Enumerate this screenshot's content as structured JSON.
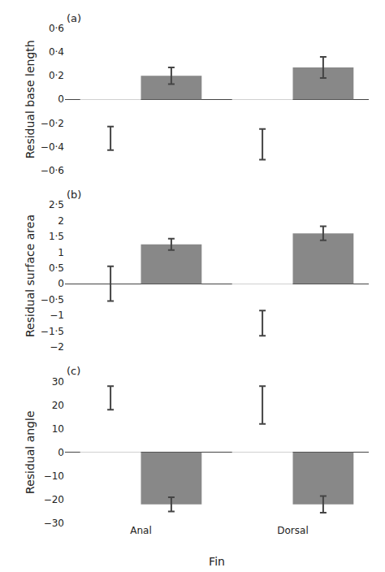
{
  "chart_data": [
    {
      "type": "bar",
      "title": "(a)",
      "ylabel": "Residual base length",
      "categories": [
        "Anal",
        "Dorsal"
      ],
      "series": [
        {
          "color": "#ffffff",
          "values": [
            -0.33,
            -0.38
          ],
          "errors": [
            0.1,
            0.13
          ]
        },
        {
          "color": "#888888",
          "values": [
            0.2,
            0.27
          ],
          "errors": [
            0.07,
            0.09
          ]
        }
      ],
      "ylim": [
        -0.6,
        0.6
      ],
      "yticks": [
        {
          "value": -0.6,
          "label": "−0·6"
        },
        {
          "value": -0.4,
          "label": "−0·4"
        },
        {
          "value": -0.2,
          "label": "−0·2"
        },
        0,
        {
          "value": 0.2,
          "label": "0·2"
        },
        {
          "value": 0.4,
          "label": "0·4"
        },
        {
          "value": 0.6,
          "label": "0·6"
        }
      ],
      "grid": false,
      "tick_labels": "y"
    },
    {
      "type": "bar",
      "title": "(b)",
      "ylabel": "Residual surface area",
      "categories": [
        "Anal",
        "Dorsal"
      ],
      "series": [
        {
          "color": "#ffffff",
          "values": [
            0.0,
            -1.25
          ],
          "errors": [
            0.55,
            0.4
          ]
        },
        {
          "color": "#888888",
          "values": [
            1.25,
            1.6
          ],
          "errors": [
            0.18,
            0.22
          ]
        }
      ],
      "ylim": [
        -2.0,
        2.5
      ],
      "yticks": [
        {
          "value": -2.0,
          "label": "−2"
        },
        {
          "value": -1.5,
          "label": "−1·5"
        },
        {
          "value": -1.0,
          "label": "−1"
        },
        {
          "value": -0.5,
          "label": "−0·5"
        },
        0,
        {
          "value": 0.5,
          "label": "0·5"
        },
        1,
        {
          "value": 1.5,
          "label": "1·5"
        },
        2,
        {
          "value": 2.5,
          "label": "2·5"
        }
      ],
      "grid": false,
      "tick_labels": "y"
    },
    {
      "type": "bar",
      "title": "(c)",
      "ylabel": "Residual angle",
      "xlabel": "Fin",
      "categories": [
        "Anal",
        "Dorsal"
      ],
      "series": [
        {
          "color": "#ffffff",
          "values": [
            23.0,
            20.0
          ],
          "errors": [
            5.0,
            8.0
          ]
        },
        {
          "color": "#888888",
          "values": [
            -22.0,
            -22.0
          ],
          "errors": [
            3.0,
            3.5
          ]
        }
      ],
      "ylim": [
        -30,
        30
      ],
      "yticks": [
        {
          "value": -30,
          "label": "−30"
        },
        {
          "value": -20,
          "label": "−20"
        },
        {
          "value": -10,
          "label": "−10"
        },
        0,
        10,
        20,
        30
      ],
      "grid": false
    }
  ]
}
